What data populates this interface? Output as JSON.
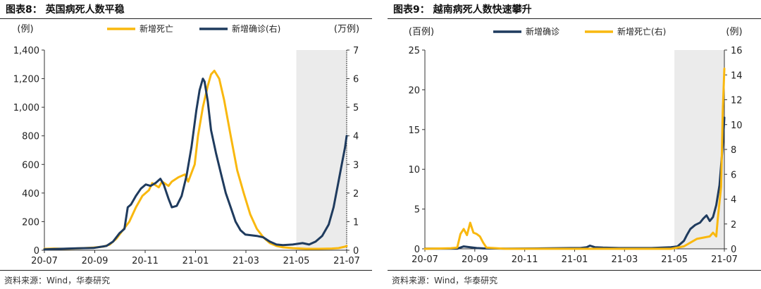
{
  "colors": {
    "yellow": "#F9B80F",
    "navy": "#1F3B5E",
    "shade": "#EBEBEB",
    "axis": "#333333"
  },
  "source": "资料来源：Wind，华泰研究",
  "chart_data": [
    {
      "type": "line",
      "title": "图表8：  英国病死人数平稳",
      "unit_left": "(例)",
      "unit_right": "(万例)",
      "shaded_region": [
        "21-05",
        "21-07"
      ],
      "x_ticks": [
        "20-07",
        "20-09",
        "20-11",
        "21-01",
        "21-03",
        "21-05",
        "21-07"
      ],
      "y_left": {
        "lim": [
          0,
          1400
        ],
        "ticks": [
          "0",
          "200",
          "400",
          "600",
          "800",
          "1,000",
          "1,200",
          "1,400"
        ]
      },
      "y_right": {
        "lim": [
          0,
          7
        ],
        "ticks": [
          "0",
          "1",
          "2",
          "3",
          "4",
          "5",
          "6",
          "7"
        ]
      },
      "legend": "top",
      "series": [
        {
          "name": "新增死亡",
          "axis": "left",
          "color": "yellow",
          "points": [
            [
              0,
              10
            ],
            [
              0.3,
              12
            ],
            [
              0.6,
              10
            ],
            [
              0.9,
              12
            ],
            [
              1.2,
              15
            ],
            [
              1.5,
              18
            ],
            [
              1.8,
              25
            ],
            [
              2.0,
              40
            ],
            [
              2.2,
              80
            ],
            [
              2.4,
              140
            ],
            [
              2.6,
              200
            ],
            [
              2.8,
              300
            ],
            [
              3.0,
              380
            ],
            [
              3.2,
              420
            ],
            [
              3.3,
              470
            ],
            [
              3.5,
              440
            ],
            [
              3.6,
              480
            ],
            [
              3.8,
              450
            ],
            [
              3.9,
              480
            ],
            [
              4.1,
              510
            ],
            [
              4.3,
              530
            ],
            [
              4.4,
              480
            ],
            [
              4.6,
              600
            ],
            [
              4.7,
              800
            ],
            [
              4.85,
              1000
            ],
            [
              5.0,
              1150
            ],
            [
              5.1,
              1230
            ],
            [
              5.2,
              1255
            ],
            [
              5.35,
              1200
            ],
            [
              5.5,
              1050
            ],
            [
              5.7,
              800
            ],
            [
              5.9,
              560
            ],
            [
              6.1,
              400
            ],
            [
              6.3,
              250
            ],
            [
              6.5,
              150
            ],
            [
              6.7,
              90
            ],
            [
              6.9,
              50
            ],
            [
              7.1,
              30
            ],
            [
              7.3,
              20
            ],
            [
              7.6,
              15
            ],
            [
              8.0,
              10
            ],
            [
              8.4,
              10
            ],
            [
              8.8,
              12
            ],
            [
              9.0,
              15
            ],
            [
              9.2,
              25
            ],
            [
              9.25,
              30
            ]
          ]
        },
        {
          "name": "新增确诊(右)",
          "axis": "right",
          "color": "navy",
          "points": [
            [
              0,
              0.03
            ],
            [
              0.5,
              0.05
            ],
            [
              1.0,
              0.07
            ],
            [
              1.5,
              0.08
            ],
            [
              1.9,
              0.15
            ],
            [
              2.1,
              0.3
            ],
            [
              2.3,
              0.6
            ],
            [
              2.45,
              0.75
            ],
            [
              2.55,
              1.5
            ],
            [
              2.65,
              1.6
            ],
            [
              2.8,
              1.9
            ],
            [
              2.95,
              2.15
            ],
            [
              3.1,
              2.3
            ],
            [
              3.25,
              2.25
            ],
            [
              3.4,
              2.35
            ],
            [
              3.55,
              2.5
            ],
            [
              3.65,
              2.3
            ],
            [
              3.8,
              1.8
            ],
            [
              3.9,
              1.5
            ],
            [
              4.05,
              1.55
            ],
            [
              4.2,
              1.9
            ],
            [
              4.35,
              2.6
            ],
            [
              4.5,
              3.6
            ],
            [
              4.65,
              4.9
            ],
            [
              4.75,
              5.6
            ],
            [
              4.85,
              6.0
            ],
            [
              4.9,
              5.9
            ],
            [
              5.0,
              5.2
            ],
            [
              5.1,
              4.2
            ],
            [
              5.25,
              3.4
            ],
            [
              5.4,
              2.7
            ],
            [
              5.55,
              2.0
            ],
            [
              5.7,
              1.5
            ],
            [
              5.85,
              1.0
            ],
            [
              6.0,
              0.7
            ],
            [
              6.15,
              0.55
            ],
            [
              6.5,
              0.5
            ],
            [
              6.7,
              0.45
            ],
            [
              6.9,
              0.3
            ],
            [
              7.1,
              0.2
            ],
            [
              7.3,
              0.18
            ],
            [
              7.6,
              0.2
            ],
            [
              7.9,
              0.25
            ],
            [
              8.1,
              0.2
            ],
            [
              8.3,
              0.3
            ],
            [
              8.5,
              0.5
            ],
            [
              8.7,
              0.9
            ],
            [
              8.85,
              1.5
            ],
            [
              9.0,
              2.4
            ],
            [
              9.1,
              3.0
            ],
            [
              9.2,
              3.6
            ],
            [
              9.25,
              4.0
            ]
          ]
        }
      ]
    },
    {
      "type": "line",
      "title": "图表9：  越南病死人数快速攀升",
      "unit_left": "(百例)",
      "unit_right": "(例)",
      "shaded_region": [
        "21-05",
        "21-07"
      ],
      "x_ticks": [
        "20-07",
        "20-09",
        "20-11",
        "21-01",
        "21-03",
        "21-05",
        "21-07"
      ],
      "y_left": {
        "lim": [
          0,
          25
        ],
        "ticks": [
          "0",
          "5",
          "10",
          "15",
          "20",
          "25"
        ]
      },
      "y_right": {
        "lim": [
          0,
          16
        ],
        "ticks": [
          "0",
          "2",
          "4",
          "6",
          "8",
          "10",
          "12",
          "14",
          "16"
        ]
      },
      "legend": "top",
      "series": [
        {
          "name": "新增确诊",
          "axis": "left",
          "color": "navy",
          "points": [
            [
              0,
              0.02
            ],
            [
              1.0,
              0.02
            ],
            [
              1.2,
              0.3
            ],
            [
              1.4,
              0.2
            ],
            [
              1.6,
              0.1
            ],
            [
              1.8,
              0.05
            ],
            [
              2.5,
              0.02
            ],
            [
              3.6,
              0.05
            ],
            [
              4.5,
              0.1
            ],
            [
              4.8,
              0.1
            ],
            [
              5.0,
              0.2
            ],
            [
              5.1,
              0.4
            ],
            [
              5.25,
              0.2
            ],
            [
              5.5,
              0.15
            ],
            [
              6.0,
              0.1
            ],
            [
              7.0,
              0.1
            ],
            [
              7.6,
              0.2
            ],
            [
              7.8,
              0.3
            ],
            [
              8.0,
              1.0
            ],
            [
              8.1,
              1.8
            ],
            [
              8.2,
              2.5
            ],
            [
              8.35,
              3.0
            ],
            [
              8.5,
              3.3
            ],
            [
              8.6,
              3.8
            ],
            [
              8.7,
              4.2
            ],
            [
              8.8,
              3.5
            ],
            [
              8.9,
              4.0
            ],
            [
              9.0,
              5.5
            ],
            [
              9.1,
              8.0
            ],
            [
              9.2,
              13.0
            ],
            [
              9.25,
              16.5
            ]
          ]
        },
        {
          "name": "新增死亡(右)",
          "axis": "right",
          "color": "yellow",
          "points": [
            [
              0,
              0
            ],
            [
              0.8,
              0.05
            ],
            [
              1.0,
              0.1
            ],
            [
              1.1,
              1.2
            ],
            [
              1.2,
              1.6
            ],
            [
              1.3,
              1.1
            ],
            [
              1.4,
              2.1
            ],
            [
              1.5,
              1.3
            ],
            [
              1.6,
              1.2
            ],
            [
              1.7,
              1.0
            ],
            [
              1.8,
              0.5
            ],
            [
              1.9,
              0.1
            ],
            [
              2.5,
              0
            ],
            [
              5.0,
              0
            ],
            [
              7.6,
              0
            ],
            [
              8.0,
              0.2
            ],
            [
              8.2,
              0.5
            ],
            [
              8.4,
              0.8
            ],
            [
              8.6,
              0.9
            ],
            [
              8.8,
              1.0
            ],
            [
              8.9,
              1.3
            ],
            [
              9.0,
              1.0
            ],
            [
              9.05,
              2.5
            ],
            [
              9.15,
              5.0
            ],
            [
              9.2,
              11.0
            ],
            [
              9.25,
              14.5
            ]
          ]
        }
      ]
    }
  ]
}
